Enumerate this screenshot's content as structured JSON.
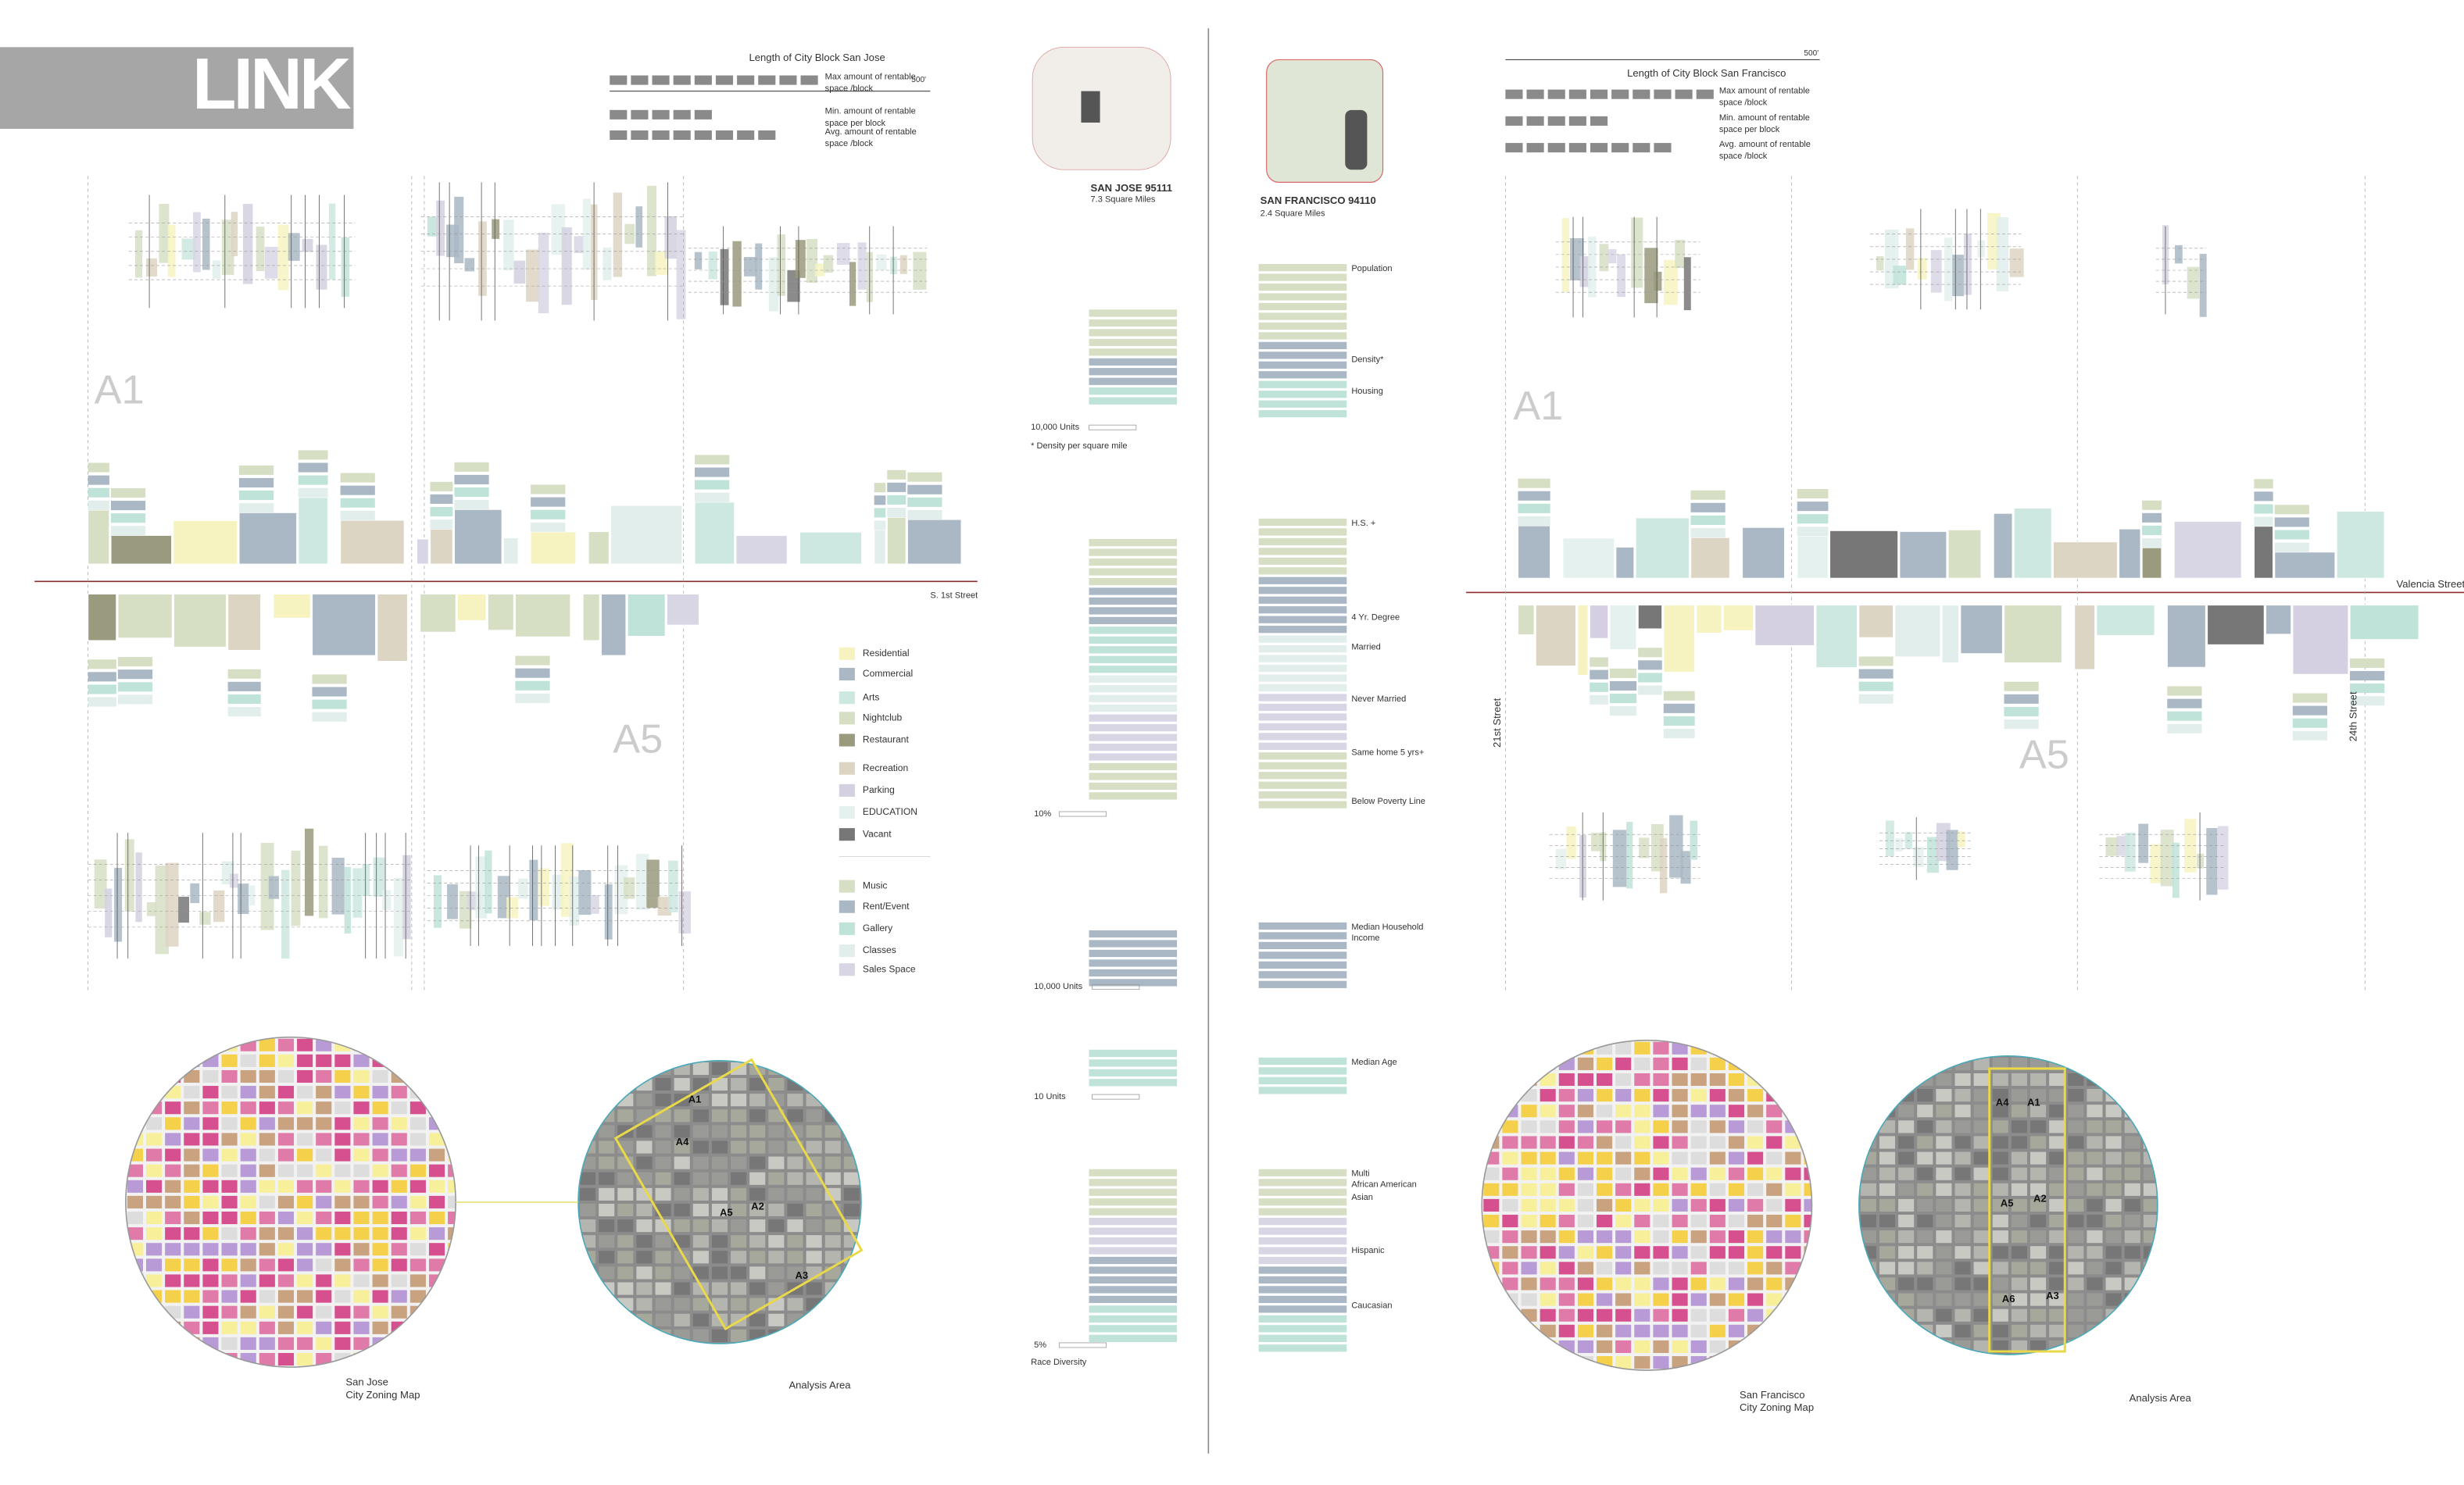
{
  "header": {
    "logo": "LINK"
  },
  "san_jose": {
    "scale": "500'",
    "block_title": "Length of City Block San Jose",
    "block_legend": [
      [
        "Max amount of rentable",
        "space /block"
      ],
      [
        "Min.  amount of rentable",
        "space per block"
      ],
      [
        "Avg. amount of rentable",
        "space /block"
      ]
    ],
    "zones": [
      "A1",
      "A5"
    ],
    "street": "S. 1st Street",
    "map_title": "SAN JOSE 95111",
    "map_area": "7.3 Square Miles",
    "stat_labels": [
      "10,000 Units",
      "* Density per square mile",
      "10%",
      "10,000 Units",
      "10 Units",
      "5%",
      "Race Diversity"
    ],
    "zoning_map": [
      "San Jose",
      "City Zoning Map"
    ],
    "analysis_map": "Analysis Area",
    "markers": [
      "A1",
      "A4",
      "A5",
      "A2",
      "A3"
    ]
  },
  "san_francisco": {
    "scale": "500'",
    "block_title": "Length of City Block San Francisco",
    "block_legend": [
      [
        "Max amount of rentable",
        "space /block"
      ],
      [
        "Min.  amount of rentable",
        "space per block"
      ],
      [
        "Avg.  amount of rentable",
        "space /block"
      ]
    ],
    "zones": [
      "A1",
      "A5"
    ],
    "street": "Valencia Street",
    "cross_streets": [
      "21st Street",
      "24th Street"
    ],
    "map_title": "SAN FRANCISCO 94110",
    "map_area": "2.4 Square Miles",
    "stat_labels": [
      "Population",
      "Density*",
      "Housing",
      "H.S. +",
      "4 Yr. Degree",
      "Married",
      "Never Married",
      "Same home 5 yrs+",
      "Below Poverty Line",
      "Median Household",
      "Income",
      "Median Age",
      "Multi",
      "African American",
      "Asian",
      "Hispanic",
      "Caucasian"
    ],
    "zoning_map": [
      "San Francisco",
      "City Zoning Map"
    ],
    "analysis_map": "Analysis Area",
    "markers": [
      "A4",
      "A1",
      "A5",
      "A2",
      "A6",
      "A3"
    ]
  },
  "legend": {
    "land_use": [
      {
        "label": "Residential",
        "color": "#f6f3c0"
      },
      {
        "label": "Commercial",
        "color": "#a9b8c4"
      },
      {
        "label": "Arts",
        "color": "#cde8e0"
      },
      {
        "label": "Nightclub",
        "color": "#d6dfc4"
      },
      {
        "label": "Restaurant",
        "color": "#9a9a7e"
      },
      {
        "label": "Recreation",
        "color": "#ddd5c3"
      },
      {
        "label": "Parking",
        "color": "#d4d0e1"
      },
      {
        "label": "EDUCATION",
        "color": "#e4f1ef"
      },
      {
        "label": "Vacant",
        "color": "#777777"
      }
    ],
    "program": [
      {
        "label": "Music",
        "color": "#d6dfc4"
      },
      {
        "label": "Rent/Event",
        "color": "#a9b8c4"
      },
      {
        "label": "Gallery",
        "color": "#bfe3d9"
      },
      {
        "label": "Classes",
        "color": "#e1eeec"
      },
      {
        "label": "Sales Space",
        "color": "#d8d6e5"
      }
    ]
  }
}
